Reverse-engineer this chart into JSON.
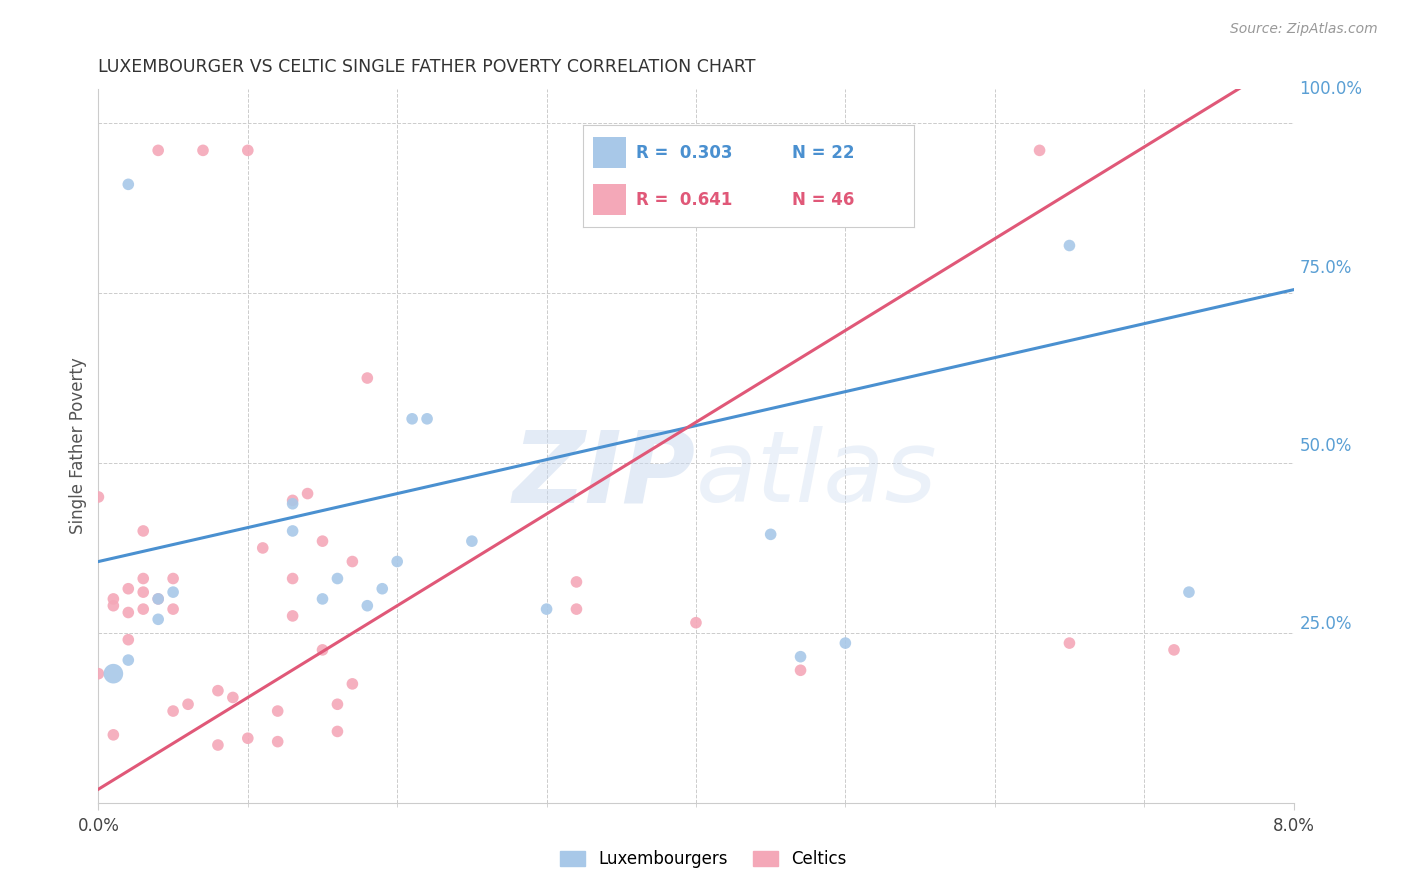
{
  "title": "LUXEMBOURGER VS CELTIC SINGLE FATHER POVERTY CORRELATION CHART",
  "source": "Source: ZipAtlas.com",
  "ylabel": "Single Father Poverty",
  "legend_blue_label": "Luxembourgers",
  "legend_pink_label": "Celtics",
  "watermark": "ZIPatlas",
  "blue_color": "#a8c8e8",
  "pink_color": "#f4a8b8",
  "blue_line_color": "#4a90d0",
  "pink_line_color": "#e05878",
  "background_color": "#ffffff",
  "grid_color": "#cccccc",
  "right_label_color": "#5a9fd4",
  "xlim": [
    0.0,
    0.08
  ],
  "ylim": [
    0.0,
    1.05
  ],
  "blue_intercept": 0.355,
  "blue_slope": 5.0,
  "pink_intercept": 0.02,
  "pink_slope": 13.5,
  "blue_points_x": [
    0.001,
    0.002,
    0.002,
    0.004,
    0.004,
    0.005,
    0.013,
    0.013,
    0.015,
    0.016,
    0.018,
    0.019,
    0.02,
    0.021,
    0.022,
    0.025,
    0.03,
    0.045,
    0.047,
    0.05,
    0.065,
    0.073
  ],
  "blue_points_y": [
    0.19,
    0.21,
    0.91,
    0.27,
    0.3,
    0.31,
    0.4,
    0.44,
    0.3,
    0.33,
    0.29,
    0.315,
    0.355,
    0.565,
    0.565,
    0.385,
    0.285,
    0.395,
    0.215,
    0.235,
    0.82,
    0.31
  ],
  "blue_point_sizes": [
    200,
    70,
    70,
    70,
    70,
    70,
    70,
    70,
    70,
    70,
    70,
    70,
    70,
    70,
    70,
    70,
    70,
    70,
    70,
    70,
    70,
    70
  ],
  "pink_points_x": [
    0.0,
    0.001,
    0.001,
    0.001,
    0.002,
    0.002,
    0.002,
    0.003,
    0.003,
    0.003,
    0.003,
    0.004,
    0.004,
    0.005,
    0.005,
    0.005,
    0.006,
    0.007,
    0.008,
    0.008,
    0.009,
    0.01,
    0.01,
    0.011,
    0.012,
    0.012,
    0.013,
    0.013,
    0.013,
    0.014,
    0.015,
    0.015,
    0.016,
    0.016,
    0.017,
    0.017,
    0.018,
    0.032,
    0.032,
    0.04,
    0.045,
    0.047,
    0.063,
    0.065,
    0.072,
    0.0
  ],
  "pink_points_y": [
    0.19,
    0.1,
    0.29,
    0.3,
    0.24,
    0.28,
    0.315,
    0.285,
    0.31,
    0.33,
    0.4,
    0.96,
    0.3,
    0.135,
    0.285,
    0.33,
    0.145,
    0.96,
    0.085,
    0.165,
    0.155,
    0.095,
    0.96,
    0.375,
    0.09,
    0.135,
    0.275,
    0.33,
    0.445,
    0.455,
    0.225,
    0.385,
    0.105,
    0.145,
    0.175,
    0.355,
    0.625,
    0.285,
    0.325,
    0.265,
    0.96,
    0.195,
    0.96,
    0.235,
    0.225,
    0.45
  ],
  "pink_point_sizes": [
    70,
    70,
    70,
    70,
    70,
    70,
    70,
    70,
    70,
    70,
    70,
    70,
    70,
    70,
    70,
    70,
    70,
    70,
    70,
    70,
    70,
    70,
    70,
    70,
    70,
    70,
    70,
    70,
    70,
    70,
    70,
    70,
    70,
    70,
    70,
    70,
    70,
    70,
    70,
    70,
    70,
    70,
    70,
    70,
    70,
    70
  ]
}
